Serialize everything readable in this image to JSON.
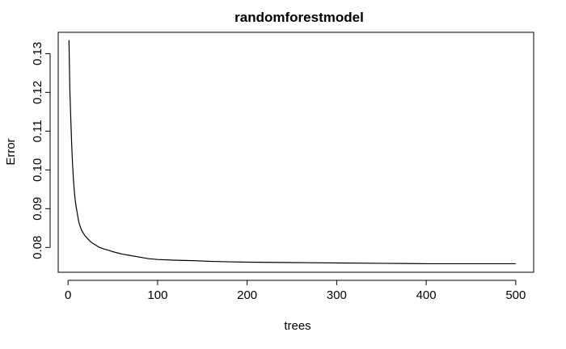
{
  "chart_data": {
    "type": "line",
    "title": "randomforestmodel",
    "xlabel": "trees",
    "ylabel": "Error",
    "xlim": [
      -11,
      520
    ],
    "ylim": [
      0.0736,
      0.1355
    ],
    "xticks": [
      0,
      100,
      200,
      300,
      400,
      500
    ],
    "yticks": [
      0.08,
      0.09,
      0.1,
      0.11,
      0.12,
      0.13
    ],
    "xtick_labels": [
      "0",
      "100",
      "200",
      "300",
      "400",
      "500"
    ],
    "ytick_labels": [
      "0.08",
      "0.09",
      "0.10",
      "0.11",
      "0.12",
      "0.13"
    ],
    "grid": false,
    "legend": "none",
    "series": [
      {
        "color": "#000000",
        "x": [
          1,
          2,
          3,
          4,
          5,
          6,
          7,
          8,
          9,
          10,
          11,
          12,
          13,
          14,
          15,
          17,
          19,
          21,
          23,
          25,
          28,
          31,
          35,
          40,
          45,
          50,
          55,
          60,
          70,
          80,
          90,
          100,
          120,
          140,
          160,
          180,
          200,
          250,
          300,
          350,
          400,
          450,
          500
        ],
        "y": [
          0.1335,
          0.1205,
          0.1135,
          0.1068,
          0.1015,
          0.0975,
          0.0945,
          0.0922,
          0.0905,
          0.0892,
          0.0878,
          0.0866,
          0.0858,
          0.0851,
          0.0845,
          0.0837,
          0.083,
          0.0825,
          0.082,
          0.0815,
          0.081,
          0.0806,
          0.08,
          0.0796,
          0.0793,
          0.0789,
          0.0786,
          0.0783,
          0.0779,
          0.0775,
          0.0771,
          0.0769,
          0.0767,
          0.0766,
          0.0764,
          0.0763,
          0.0762,
          0.0761,
          0.076,
          0.0759,
          0.0758,
          0.0758,
          0.0758
        ]
      }
    ]
  }
}
